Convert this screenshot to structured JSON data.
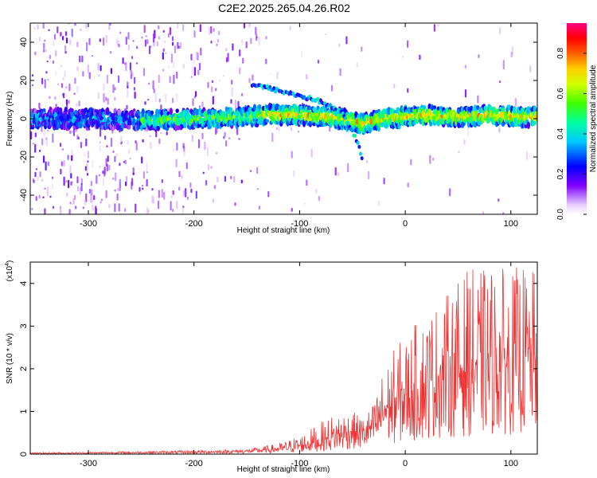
{
  "title": "C2E2.2025.265.04.26.R02",
  "spectrogram": {
    "type": "heatmap",
    "xlabel": "Height of straight line (km)",
    "ylabel": "Frequency (Hz)",
    "xlim": [
      -355,
      125
    ],
    "ylim": [
      -50,
      50
    ],
    "xticks": [
      -300,
      -200,
      -100,
      0,
      100
    ],
    "yticks": [
      -40,
      -20,
      0,
      20,
      40
    ],
    "colorbar": {
      "label": "Normalized spectral amplitude",
      "range": [
        0.0,
        0.95
      ],
      "ticks": [
        0.0,
        0.2,
        0.4,
        0.6,
        0.8
      ]
    }
  },
  "chart_data": [
    {
      "type": "heatmap",
      "title": "C2E2.2025.265.04.26.R02",
      "xlabel": "Height of straight line (km)",
      "ylabel": "Frequency (Hz)",
      "xlim": [
        -355,
        125
      ],
      "ylim": [
        -50,
        50
      ],
      "signal_track": {
        "x": [
          -350,
          -300,
          -250,
          -200,
          -150,
          -130,
          -100,
          -80,
          -60,
          -45,
          -40,
          -30,
          -20,
          0,
          20,
          40,
          60,
          80,
          100,
          120
        ],
        "freq_hz": [
          0,
          0,
          -1,
          0,
          1,
          2,
          2,
          1,
          0,
          -2,
          -3,
          -1,
          0,
          1,
          2,
          1,
          1,
          2,
          1,
          1
        ]
      },
      "side_branch": {
        "x": [
          -145,
          -130,
          -100,
          -80,
          -60,
          -45,
          -40
        ],
        "freq_hz": [
          18,
          16,
          12,
          9,
          3,
          -12,
          -22
        ]
      },
      "colorbar": {
        "label": "Normalized spectral amplitude",
        "range": [
          0.0,
          0.95
        ],
        "ticks": [
          0.0,
          0.2,
          0.4,
          0.6,
          0.8
        ]
      }
    },
    {
      "type": "line",
      "xlabel": "Height of straight line (km)",
      "ylabel": "SNR (10 * v/v)",
      "scale_note": "(x10",
      "scale_exp": "4",
      "xlim": [
        -355,
        125
      ],
      "ylim": [
        0,
        4.5
      ],
      "xticks": [
        -300,
        -200,
        -100,
        0,
        100
      ],
      "yticks": [
        0,
        1,
        2,
        3,
        4
      ],
      "series": [
        {
          "name": "SNR",
          "color": "#ee3333",
          "x": [
            -350,
            -300,
            -250,
            -200,
            -150,
            -120,
            -100,
            -80,
            -60,
            -50,
            -40,
            -30,
            -20,
            -10,
            0,
            10,
            20,
            30,
            40,
            50,
            60,
            70,
            80,
            90,
            100,
            110,
            120
          ],
          "mean": [
            0.02,
            0.03,
            0.04,
            0.05,
            0.07,
            0.12,
            0.2,
            0.3,
            0.45,
            0.55,
            0.5,
            0.65,
            1.05,
            1.2,
            1.35,
            1.5,
            1.65,
            1.8,
            1.9,
            2.0,
            2.05,
            2.1,
            2.15,
            2.2,
            2.25,
            2.25,
            2.3
          ],
          "peak": [
            0.04,
            0.05,
            0.07,
            0.09,
            0.12,
            0.25,
            0.45,
            0.75,
            1.1,
            1.0,
            0.9,
            1.2,
            2.1,
            2.5,
            2.8,
            3.1,
            3.4,
            3.6,
            3.8,
            4.1,
            4.4,
            4.3,
            4.5,
            4.4,
            4.3,
            4.5,
            4.3
          ]
        }
      ]
    }
  ]
}
